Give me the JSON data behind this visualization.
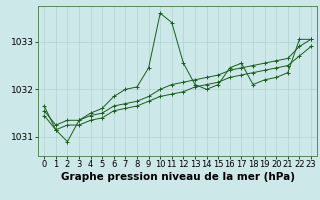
{
  "bg_color": "#cce8e8",
  "grid_color": "#aacccc",
  "line_color": "#1a5c1a",
  "xlabel": "Graphe pression niveau de la mer (hPa)",
  "xlabel_fontsize": 7.5,
  "tick_fontsize": 6.5,
  "xlim": [
    -0.5,
    23.5
  ],
  "ylim": [
    1030.6,
    1033.75
  ],
  "yticks": [
    1031,
    1032,
    1033
  ],
  "xticks": [
    0,
    1,
    2,
    3,
    4,
    5,
    6,
    7,
    8,
    9,
    10,
    11,
    12,
    13,
    14,
    15,
    16,
    17,
    18,
    19,
    20,
    21,
    22,
    23
  ],
  "series1": [
    1031.65,
    1031.15,
    1030.9,
    1031.35,
    1031.5,
    1031.6,
    1031.85,
    1032.0,
    1032.05,
    1032.45,
    1033.6,
    1033.4,
    1032.55,
    1032.1,
    1032.0,
    1032.1,
    1032.45,
    1032.55,
    1032.1,
    1032.2,
    1032.25,
    1032.35,
    1033.05,
    1033.05
  ],
  "series2": [
    1031.55,
    1031.25,
    1031.35,
    1031.35,
    1031.45,
    1031.5,
    1031.65,
    1031.7,
    1031.75,
    1031.85,
    1032.0,
    1032.1,
    1032.15,
    1032.2,
    1032.25,
    1032.3,
    1032.4,
    1032.45,
    1032.5,
    1032.55,
    1032.6,
    1032.65,
    1032.9,
    1033.05
  ],
  "series3": [
    1031.45,
    1031.15,
    1031.25,
    1031.25,
    1031.35,
    1031.4,
    1031.55,
    1031.6,
    1031.65,
    1031.75,
    1031.85,
    1031.9,
    1031.95,
    1032.05,
    1032.1,
    1032.15,
    1032.25,
    1032.3,
    1032.35,
    1032.4,
    1032.45,
    1032.5,
    1032.7,
    1032.9
  ]
}
